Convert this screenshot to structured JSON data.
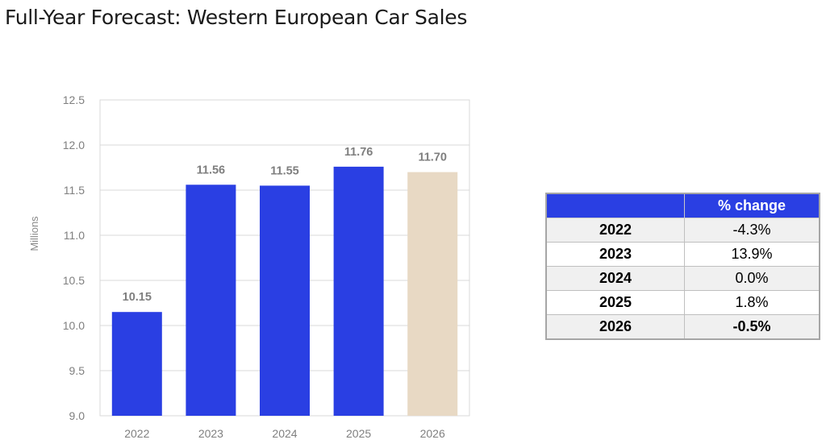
{
  "title": "Full-Year Forecast: Western European Car Sales",
  "chart_data": {
    "type": "bar",
    "categories": [
      "2022",
      "2023",
      "2024",
      "2025",
      "2026"
    ],
    "values": [
      10.15,
      11.56,
      11.55,
      11.76,
      11.7
    ],
    "data_labels": [
      "10.15",
      "11.56",
      "11.55",
      "11.76",
      "11.70"
    ],
    "bar_colors": [
      "#2a3fe3",
      "#2a3fe3",
      "#2a3fe3",
      "#2a3fe3",
      "#e8d9c4"
    ],
    "xlabel": "",
    "ylabel": "Millions",
    "ylim": [
      9.0,
      12.5
    ],
    "yticks": [
      9.0,
      9.5,
      10.0,
      10.5,
      11.0,
      11.5,
      12.0,
      12.5
    ],
    "ytick_labels": [
      "9.0",
      "9.5",
      "10.0",
      "10.5",
      "11.0",
      "11.5",
      "12.0",
      "12.5"
    ],
    "grid": true
  },
  "table": {
    "header": [
      "",
      "% change"
    ],
    "rows": [
      {
        "year": "2022",
        "change": "-4.3%",
        "bold": false
      },
      {
        "year": "2023",
        "change": "13.9%",
        "bold": false
      },
      {
        "year": "2024",
        "change": "0.0%",
        "bold": false
      },
      {
        "year": "2025",
        "change": "1.8%",
        "bold": false
      },
      {
        "year": "2026",
        "change": "-0.5%",
        "bold": true
      }
    ]
  },
  "colors": {
    "accent": "#2a3fe3",
    "forecast": "#e8d9c4",
    "grid": "#d9d9d9"
  }
}
